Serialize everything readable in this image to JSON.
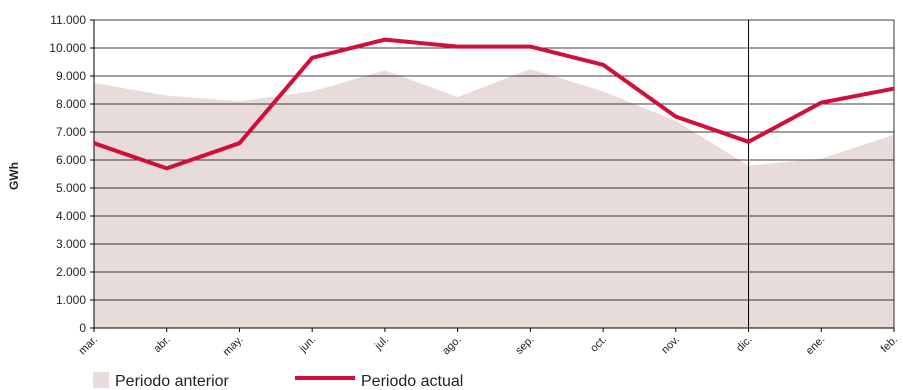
{
  "chart_data": {
    "type": "area",
    "ylabel": "GWh",
    "xlabel": "",
    "ylim": [
      0,
      11000
    ],
    "yticks": [
      0,
      1000,
      2000,
      3000,
      4000,
      5000,
      6000,
      7000,
      8000,
      9000,
      10000,
      11000
    ],
    "ytick_labels": [
      "0",
      "1.000",
      "2.000",
      "3.000",
      "4.000",
      "5.000",
      "6.000",
      "7.000",
      "8.000",
      "9.000",
      "10.000",
      "11.000"
    ],
    "categories": [
      "mar.",
      "abr.",
      "may.",
      "jun.",
      "jul.",
      "ago.",
      "sep.",
      "oct.",
      "nov.",
      "dic.",
      "ene.",
      "feb."
    ],
    "grid": "horizontal",
    "legend_position": "bottom-left",
    "vertical_marker_category": "dic.",
    "series": [
      {
        "name": "Periodo anterior",
        "type": "area",
        "color": "#e8dcda",
        "values": [
          8750,
          8300,
          8100,
          8450,
          9200,
          8250,
          9250,
          8450,
          7400,
          5800,
          6050,
          6900
        ]
      },
      {
        "name": "Periodo actual",
        "type": "line",
        "color": "#d0103a",
        "values": [
          6600,
          5700,
          6600,
          9650,
          10300,
          10050,
          10050,
          9400,
          7550,
          6650,
          8050,
          8550
        ]
      }
    ]
  }
}
